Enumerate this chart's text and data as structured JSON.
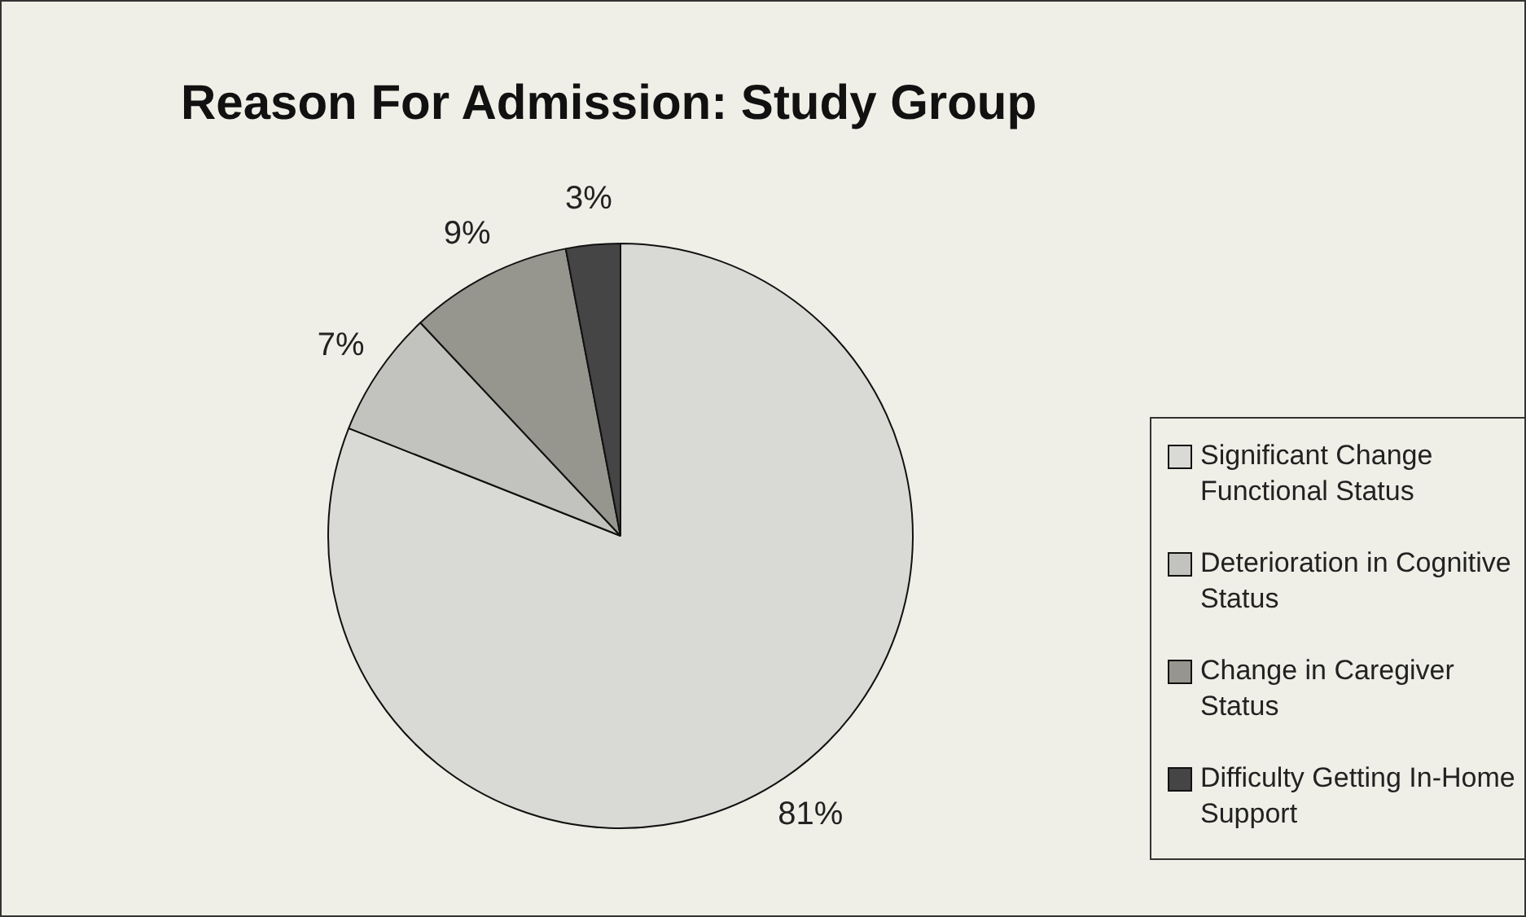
{
  "chart_data": {
    "type": "pie",
    "title": "Reason For Admission: Study Group",
    "categories": [
      "Significant Change Functional Status",
      "Deterioration in Cognitive Status",
      "Change in Caregiver Status",
      "Difficulty Getting In-Home Support"
    ],
    "values": [
      81,
      7,
      9,
      3
    ],
    "colors": [
      "#d9d9d5",
      "#c2c2be",
      "#96968f",
      "#454545"
    ],
    "value_labels": [
      "81%",
      "7%",
      "9%",
      "3%"
    ],
    "legend": "right"
  }
}
